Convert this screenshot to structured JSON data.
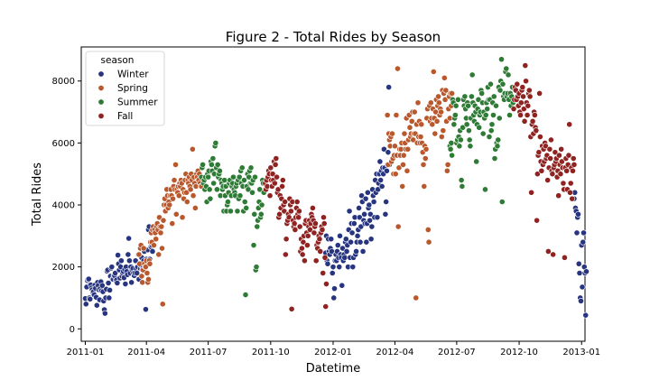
{
  "chart_data": {
    "type": "scatter",
    "title": "Figure 2 - Total Rides by Season",
    "xlabel": "Datetime",
    "ylabel": "Total Rides",
    "x_range": [
      "2010-12-26",
      "2013-01-06"
    ],
    "ylim": [
      -400,
      9100
    ],
    "x_ticks": [
      "2011-01-01",
      "2011-04-01",
      "2011-07-01",
      "2011-10-01",
      "2012-01-01",
      "2012-04-01",
      "2012-07-01",
      "2012-10-01",
      "2013-01-01"
    ],
    "x_tick_labels": [
      "2011-01",
      "2011-04",
      "2011-07",
      "2011-10",
      "2012-01",
      "2012-04",
      "2012-07",
      "2012-10",
      "2013-01"
    ],
    "y_ticks": [
      0,
      2000,
      4000,
      6000,
      8000
    ],
    "y_tick_labels": [
      "0",
      "2000",
      "4000",
      "6000",
      "8000"
    ],
    "grid": false,
    "legend": {
      "title": "season",
      "placement": "upper-left",
      "entries": [
        "Winter",
        "Spring",
        "Summer",
        "Fall"
      ]
    },
    "colors": {
      "Winter": "#27347f",
      "Spring": "#b8582c",
      "Summer": "#2e7b35",
      "Fall": "#8f2321"
    },
    "series": [
      {
        "name": "Winter",
        "segments": [
          {
            "start": "2011-01-01",
            "values": [
              980,
              800,
              1350,
              1560,
              1600,
              1610,
              1000,
              960,
              1420,
              1320,
              1260,
              1180,
              1200,
              1100,
              1410,
              1310,
              1020,
              760,
              1500,
              1400,
              1260,
              940,
              1300,
              1520,
              1230,
              1400,
              1200,
              900,
              620,
              500,
              1000,
              1280,
              1860,
              1900,
              1480,
              1000,
              1250,
              1700,
              1960,
              2000,
              1600,
              1600,
              1720,
              1720,
              1800,
              1550,
              1580,
              1480,
              2380,
              2100,
              1900,
              1640,
              2000,
              2200,
              1700,
              1800,
              1850,
              1650,
              1920,
              1450,
              2000,
              1850,
              1750,
              2400,
              2920,
              2200,
              1800,
              2000,
              1500,
              1900,
              1950,
              1800,
              1720,
              1800,
              2200,
              1950,
              1800,
              2000,
              2400,
              1600,
              2100,
              1950,
              2050,
              2300,
              1900,
              2000,
              2200,
              2500,
              2100,
              630,
              2250,
              2150,
              2550,
              3200,
              3300,
              2250,
              2650,
              2650,
              2700,
              2500
            ]
          },
          {
            "start": "2011-12-21",
            "values": [
              2450,
              3000,
              2200,
              2100,
              2900,
              2500,
              2400,
              2600,
              2900,
              2500,
              1800,
              2000,
              1000,
              1300,
              2200,
              2400,
              2200,
              2500,
              2700,
              2300,
              2000,
              3000,
              2400,
              2300,
              1400,
              2600,
              2200,
              2400,
              2300,
              2800,
              2900,
              2500,
              2700,
              2000,
              3200,
              3800,
              2300,
              2800,
              3400,
              3100,
              2000,
              2300,
              3400,
              3600,
              2400,
              2500,
              2800,
              3000,
              3200,
              3900,
              3600,
              2800,
              3300,
              4300,
              4100,
              2500,
              3500,
              3700,
              3400,
              4200,
              2800,
              3400,
              4400,
              3900,
              4000,
              3500,
              3700,
              2900,
              3300,
              4500,
              4300,
              4100,
              3600,
              4800,
              4400,
              5000,
              3600,
              4500,
              4700,
              5000,
              5400,
              4800,
              5100,
              4600,
              5200,
              5000,
              5800,
              5200,
              3700,
              4100,
              5100,
              5300,
              5700,
              7800,
              5300,
              6300
            ]
          },
          {
            "start": "2012-12-21",
            "values": [
              4200,
              4400,
              3900,
              3800,
              3100,
              3600,
              3700,
              2100,
              1800,
              1000,
              900,
              2700,
              1350,
              2800,
              3100,
              2000,
              1800,
              440,
              1850
            ]
          }
        ]
      },
      {
        "name": "Spring",
        "segments": [
          {
            "start": "2011-03-21",
            "values": [
              2400,
              2100,
              2600,
              2700,
              1700,
              1500,
              1900,
              2600,
              2100,
              2000,
              2000,
              2200,
              1800,
              1500,
              1600,
              2200,
              2100,
              2800,
              3100,
              2800,
              3200,
              3300,
              2700,
              3200,
              3100,
              2900,
              3300,
              3400,
              3200,
              2400,
              3600,
              3300,
              3100,
              3300,
              2600,
              800,
              3500,
              4000,
              4200,
              3800,
              4000,
              4500,
              4300,
              3900,
              4100,
              4000,
              4300,
              4500,
              4300,
              3400,
              4200,
              4600,
              4800,
              4500,
              5300,
              3700,
              4500,
              4400,
              4600,
              4300,
              4700,
              4600,
              4800,
              4700,
              3600,
              4500,
              4200,
              4400,
              4800,
              5000,
              4400,
              4100,
              4800,
              4700,
              4900,
              4600,
              4500,
              5000,
              4800,
              5800,
              4300,
              4900,
              4700,
              3900,
              4600,
              5000,
              4900,
              5100,
              4800,
              5000,
              4700,
              4600,
              4600
            ]
          },
          {
            "start": "2012-03-21",
            "values": [
              6900,
              5300,
              6300,
              6100,
              5900,
              6200,
              5400,
              6300,
              5500,
              5000,
              5600,
              5900,
              5000,
              6900,
              5600,
              8400,
              3300,
              5200,
              5800,
              5600,
              5800,
              6000,
              4600,
              5300,
              5600,
              6300,
              6000,
              5800,
              6800,
              5100,
              5800,
              6100,
              6900,
              6500,
              6200,
              6300,
              6700,
              7000,
              6100,
              6300,
              7000,
              6300,
              1000,
              6600,
              6000,
              7300,
              6200,
              6700,
              6000,
              6200,
              6600,
              6000,
              5700,
              5300,
              4600,
              5900,
              5500,
              5800,
              6800,
              7100,
              3200,
              2800,
              7200,
              6700,
              7300,
              6800,
              6600,
              7100,
              8300,
              6800,
              6300,
              7000,
              7400,
              6700,
              7200,
              7500,
              7300,
              6900,
              7100,
              7000,
              6200,
              7700,
              6400,
              7600,
              8100,
              7400,
              7700,
              6700,
              5100,
              5300,
              7100,
              7500,
              6800,
              7600,
              7200,
              7600
            ]
          }
        ]
      },
      {
        "name": "Summer",
        "segments": [
          {
            "start": "2011-06-21",
            "values": [
              4900,
              5200,
              5300,
              4700,
              4800,
              4500,
              4900,
              4600,
              4100,
              5000,
              4900,
              5100,
              4500,
              4200,
              5400,
              5300,
              5100,
              5500,
              4700,
              5000,
              5900,
              6000,
              5200,
              4500,
              5300,
              4900,
              5000,
              5100,
              4300,
              4800,
              4700,
              4500,
              4600,
              3800,
              4800,
              4300,
              4600,
              3800,
              4000,
              4100,
              4400,
              4700,
              4800,
              3800,
              4300,
              4600,
              4700,
              4900,
              4500,
              4400,
              4300,
              4600,
              4700,
              3800,
              4800,
              4200,
              4900,
              4300,
              5100,
              4700,
              5200,
              4600,
              3800,
              4800,
              4100,
              1100,
              3900,
              4600,
              5000,
              4500,
              4900,
              5100,
              4700,
              5200,
              4700,
              4400,
              4800,
              2700,
              3700,
              4900,
              1900,
              2000,
              3300,
              3500,
              3900,
              4100,
              4500,
              3600,
              3700,
              4000,
              4800,
              4700,
              4400
            ]
          },
          {
            "start": "2012-06-21",
            "values": [
              5900,
              5800,
              6000,
              5600,
              7400,
              7300,
              6600,
              6800,
              6900,
              7200,
              6000,
              6100,
              7400,
              6200,
              5900,
              6400,
              6100,
              4800,
              4600,
              6500,
              7400,
              7200,
              7500,
              7100,
              6800,
              6600,
              7300,
              7200,
              6400,
              6100,
              5900,
              6800,
              7500,
              8200,
              7300,
              6900,
              6700,
              7200,
              7000,
              5400,
              6600,
              7100,
              7400,
              6500,
              6900,
              7000,
              7700,
              7600,
              7300,
              6300,
              7000,
              6800,
              4500,
              6900,
              7300,
              7100,
              7800,
              7400,
              6200,
              7400,
              7900,
              6400,
              6600,
              7300,
              6900,
              7500,
              5500,
              5800,
              7200,
              6000,
              5900,
              6100,
              7800,
              6800,
              7700,
              8000,
              8700,
              4100,
              7900,
              7500,
              7400,
              7600,
              8300,
              8400,
              7500,
              7600,
              8200,
              7400,
              6900,
              7600,
              7200,
              7500,
              7800,
              7300
            ]
          }
        ]
      },
      {
        "name": "Fall",
        "segments": [
          {
            "start": "2011-09-23",
            "values": [
              4700,
              4500,
              4800,
              4600,
              4900,
              5100,
              5000,
              4300,
              5200,
              4800,
              4600,
              5000,
              4800,
              5400,
              4700,
              5300,
              5500,
              4900,
              4400,
              4500,
              3600,
              3700,
              4300,
              3900,
              4200,
              4600,
              4800,
              4000,
              3800,
              4100,
              2400,
              2900,
              3400,
              3500,
              3700,
              3600,
              4200,
              4000,
              3800,
              640,
              4100,
              3500,
              3300,
              3400,
              3200,
              3600,
              3900,
              4100,
              3700,
              3600,
              3800,
              3300,
              2500,
              2900,
              2600,
              2400,
              2800,
              3000,
              2200,
              3400,
              3500,
              3100,
              2700,
              3000,
              3300,
              3500,
              3200,
              3400,
              3700,
              3600,
              3900,
              3500,
              3100,
              3300,
              3400,
              2200,
              2700,
              2600,
              2800,
              3000,
              2900,
              2500,
              3100,
              3300,
              3200,
              1800,
              3600,
              3400,
              2300,
              720,
              1450
            ]
          },
          {
            "start": "2012-09-23",
            "values": [
              7100,
              7400,
              7800,
              7700,
              7400,
              7900,
              7500,
              7200,
              7600,
              7000,
              6900,
              7300,
              7700,
              7800,
              7500,
              7100,
              6700,
              8500,
              8000,
              7300,
              6900,
              7200,
              7600,
              7700,
              7500,
              6200,
              4400,
              6600,
              6700,
              6300,
              7000,
              6900,
              6500,
              6400,
              3500,
              5000,
              5600,
              5700,
              7600,
              6200,
              5400,
              5100,
              5900,
              5300,
              5800,
              5400,
              6000,
              5900,
              5500,
              5600,
              4800,
              2500,
              5200,
              5800,
              5500,
              6100,
              5100,
              5000,
              2400,
              5200,
              5300,
              5700,
              5400,
              5500,
              4900,
              5100,
              4300,
              5600,
              5300,
              5000,
              5800,
              5400,
              5200,
              4700,
              4500,
              2300,
              5200,
              5500,
              5100,
              4500,
              5300,
              5600,
              6600,
              4400,
              4700,
              5200,
              4200,
              5100,
              5500,
              5300
            ]
          }
        ]
      }
    ]
  }
}
